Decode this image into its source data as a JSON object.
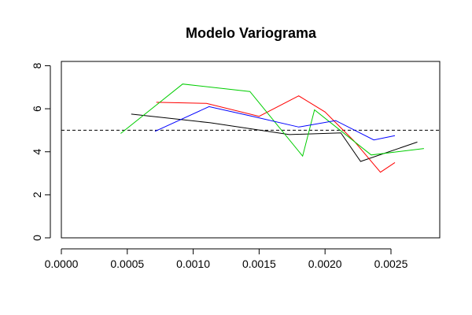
{
  "chart_data": {
    "type": "line",
    "title": "Modelo Variograma",
    "xlabel": "",
    "ylabel": "",
    "xlim": [
      0,
      0.00287
    ],
    "ylim": [
      0,
      8.2
    ],
    "x_ticks": [
      0,
      0.0005,
      0.001,
      0.0015,
      0.002,
      0.0025
    ],
    "x_tick_labels": [
      "0.0000",
      "0.0005",
      "0.0010",
      "0.0015",
      "0.0020",
      "0.0025"
    ],
    "y_ticks": [
      0,
      2,
      4,
      6,
      8
    ],
    "y_tick_labels": [
      "0",
      "2",
      "4",
      "6",
      "8"
    ],
    "reference_line": {
      "y": 5.0,
      "style": "dashed",
      "color": "#000000"
    },
    "grid": false,
    "series": [
      {
        "color": "#000000",
        "x": [
          0.00053,
          0.00113,
          0.00173,
          0.00212,
          0.00227,
          0.0027
        ],
        "y": [
          5.75,
          5.35,
          4.8,
          4.88,
          3.55,
          4.45
        ]
      },
      {
        "color": "#ff0000",
        "x": [
          0.00072,
          0.0011,
          0.0015,
          0.0018,
          0.002,
          0.00222,
          0.00242,
          0.00253
        ],
        "y": [
          6.3,
          6.25,
          5.65,
          6.6,
          5.85,
          4.5,
          3.05,
          3.5
        ]
      },
      {
        "color": "#00cd00",
        "x": [
          0.00045,
          0.00092,
          0.00143,
          0.00183,
          0.00192,
          0.00235,
          0.00275
        ],
        "y": [
          4.85,
          7.15,
          6.8,
          3.8,
          5.95,
          3.85,
          4.15
        ]
      },
      {
        "color": "#0000ff",
        "x": [
          0.00071,
          0.00112,
          0.00145,
          0.0018,
          0.00208,
          0.00237,
          0.00253
        ],
        "y": [
          4.95,
          6.1,
          5.65,
          5.15,
          5.45,
          4.55,
          4.75
        ]
      }
    ]
  }
}
